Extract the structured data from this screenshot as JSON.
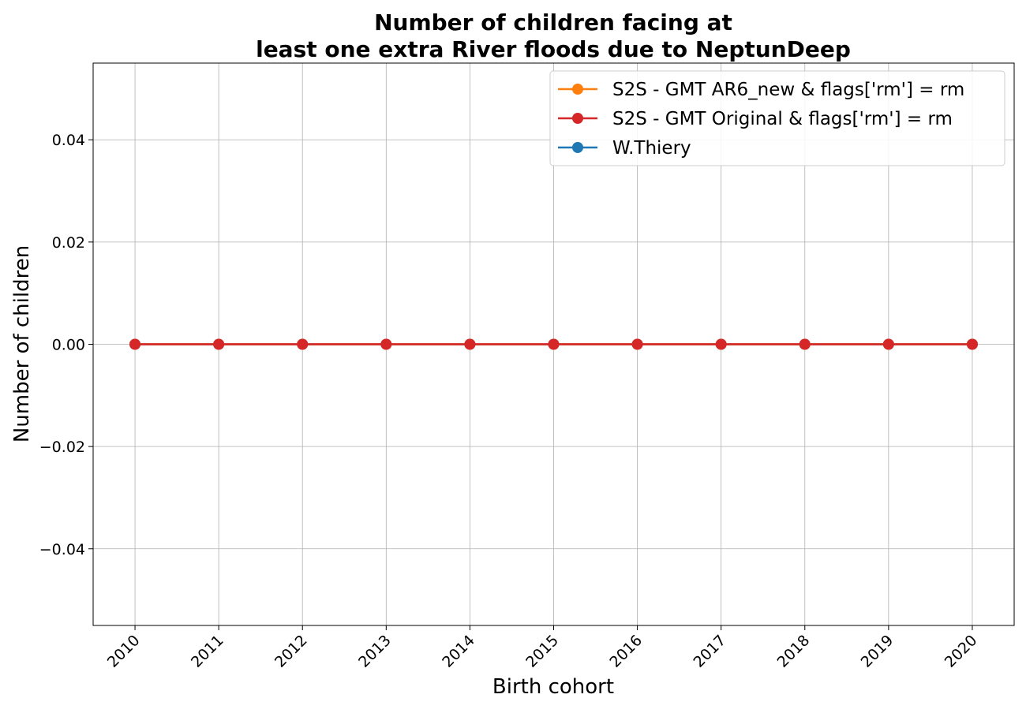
{
  "chart_data": {
    "type": "line",
    "title_lines": [
      "Number of children facing at",
      "least one extra River floods due to NeptunDeep"
    ],
    "xlabel": "Birth cohort",
    "ylabel": "Number of children",
    "x": [
      2010,
      2011,
      2012,
      2013,
      2014,
      2015,
      2016,
      2017,
      2018,
      2019,
      2020
    ],
    "x_tick_labels": [
      "2010",
      "2011",
      "2012",
      "2013",
      "2014",
      "2015",
      "2016",
      "2017",
      "2018",
      "2019",
      "2020"
    ],
    "y_ticks": [
      -0.04,
      -0.02,
      0.0,
      0.02,
      0.04
    ],
    "y_tick_labels": [
      "−0.04",
      "−0.02",
      "0.00",
      "0.02",
      "0.04"
    ],
    "ylim": [
      -0.055,
      0.055
    ],
    "xlim": [
      2009.5,
      2020.5
    ],
    "grid": true,
    "legend_position": "top-right",
    "series": [
      {
        "name": "S2S - GMT AR6_new & flags['rm'] = rm",
        "color": "#ff7f0e",
        "values": [
          0,
          0,
          0,
          0,
          0,
          0,
          0,
          0,
          0,
          0,
          0
        ]
      },
      {
        "name": "S2S - GMT Original & flags['rm'] = rm",
        "color": "#d62728",
        "values": [
          0,
          0,
          0,
          0,
          0,
          0,
          0,
          0,
          0,
          0,
          0
        ]
      },
      {
        "name": "W.Thiery",
        "color": "#1f77b4",
        "values": [
          0,
          0,
          0,
          0,
          0,
          0,
          0,
          0,
          0,
          0,
          0
        ]
      }
    ],
    "draw_order": [
      2,
      0,
      1
    ]
  }
}
